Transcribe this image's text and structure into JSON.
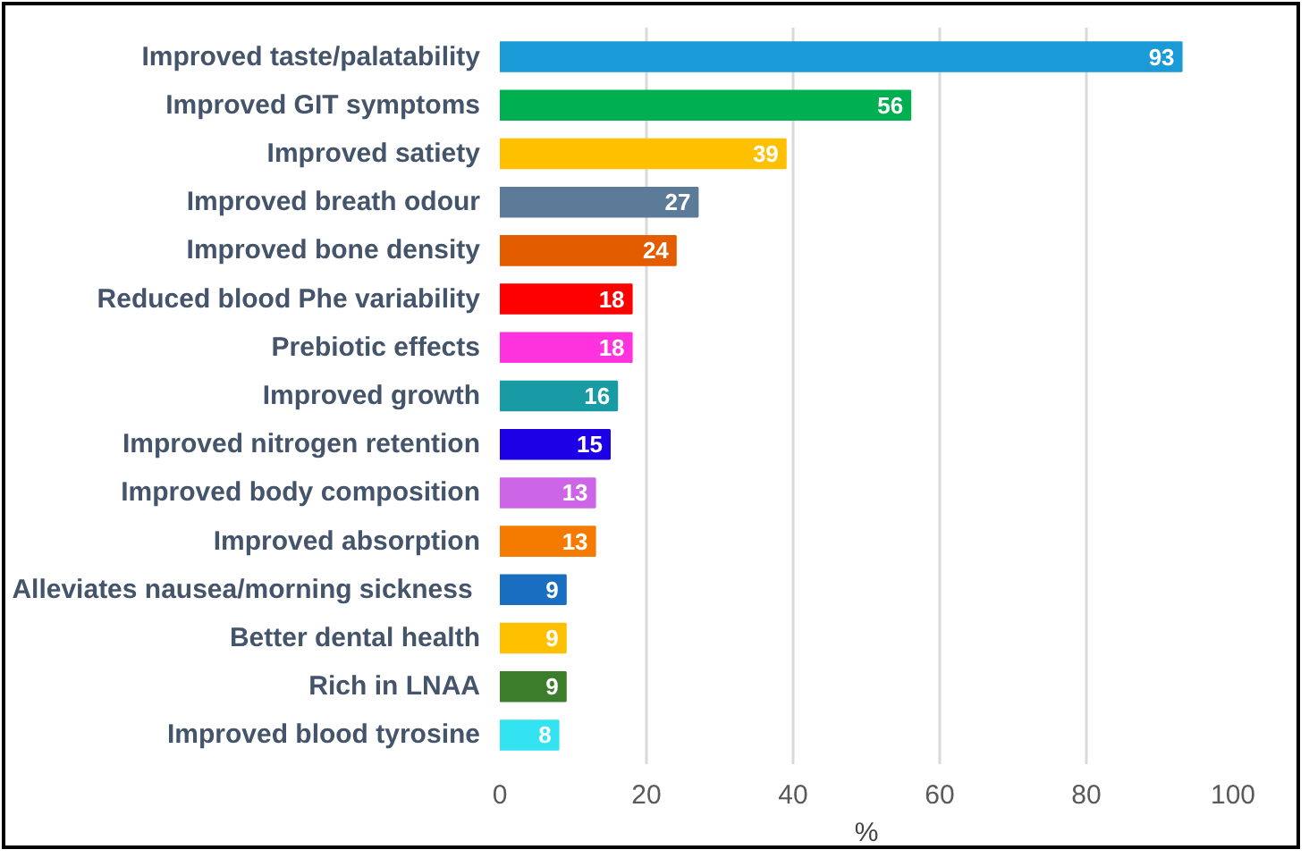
{
  "chart_data": {
    "type": "bar",
    "orientation": "horizontal",
    "xlabel": "%",
    "categories": [
      "Improved taste/palatability",
      "Improved GIT symptoms",
      "Improved satiety",
      "Improved breath odour",
      "Improved bone density",
      "Reduced blood Phe variability",
      "Prebiotic effects",
      "Improved growth",
      "Improved nitrogen retention",
      "Improved body composition",
      "Improved absorption",
      "Alleviates nausea/morning sickness ",
      "Better dental health",
      "Rich in LNAA",
      "Improved blood tyrosine"
    ],
    "values": [
      93,
      56,
      39,
      27,
      24,
      18,
      18,
      16,
      15,
      13,
      13,
      9,
      9,
      9,
      8
    ],
    "colors": [
      "#1a9ad6",
      "#00b050",
      "#ffc000",
      "#5b7b98",
      "#e35d00",
      "#ff0000",
      "#ff33dd",
      "#199ba6",
      "#1e00e6",
      "#cc66e6",
      "#f47b00",
      "#1a6ec2",
      "#ffc000",
      "#3b7d2a",
      "#33e3f2"
    ],
    "data_labels": true,
    "xlim": [
      0,
      100
    ],
    "xticks": [
      0,
      20,
      40,
      60,
      80,
      100
    ],
    "grid": "x"
  }
}
